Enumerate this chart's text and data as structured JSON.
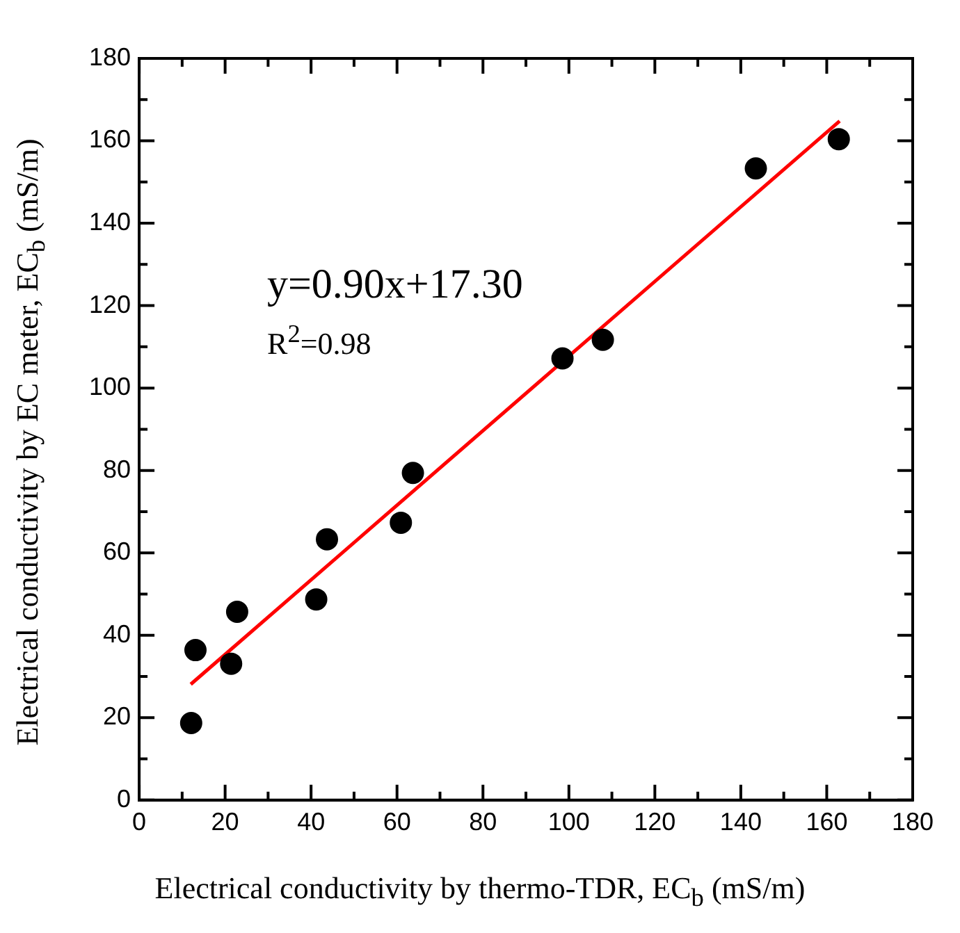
{
  "chart_data": {
    "type": "scatter",
    "xlabel": "Electrical conductivity by thermo-TDR, EC$_{b}$ (mS/m)",
    "ylabel": "Electrical conductivity by EC meter, EC$_{b}$ (mS/m)",
    "annotations": [
      "y=0.90x+17.30",
      "R$^{2}$=0.98"
    ],
    "series": [
      {
        "color": "#000000",
        "marker": "circle",
        "x": [
          12.1,
          13.1,
          21.4,
          22.8,
          41.2,
          43.7,
          60.9,
          63.7,
          98.5,
          107.9,
          143.5,
          162.8
        ],
        "values": [
          18.7,
          36.4,
          33.1,
          45.7,
          48.7,
          63.3,
          67.3,
          79.4,
          107.2,
          111.7,
          153.3,
          160.4
        ]
      },
      {
        "type": "line",
        "color": "#ff0000",
        "marker": "none",
        "line_style": "solid",
        "x": [
          12,
          163
        ],
        "values": [
          28.1,
          164.8
        ]
      }
    ],
    "xlim": [
      0,
      180
    ],
    "ylim": [
      0,
      180
    ],
    "xticks": [
      0,
      {
        "value": 10,
        "label": null
      },
      20,
      {
        "value": 30,
        "label": null
      },
      40,
      {
        "value": 50,
        "label": null
      },
      60,
      {
        "value": 70,
        "label": null
      },
      80,
      {
        "value": 90,
        "label": null
      },
      100,
      {
        "value": 110,
        "label": null
      },
      120,
      {
        "value": 130,
        "label": null
      },
      140,
      {
        "value": 150,
        "label": null
      },
      160,
      {
        "value": 170,
        "label": null
      },
      180
    ],
    "yticks": [
      0,
      {
        "value": 10,
        "label": null
      },
      20,
      {
        "value": 30,
        "label": null
      },
      40,
      {
        "value": 50,
        "label": null
      },
      60,
      {
        "value": 70,
        "label": null
      },
      80,
      {
        "value": 90,
        "label": null
      },
      100,
      {
        "value": 110,
        "label": null
      },
      120,
      {
        "value": 130,
        "label": null
      },
      140,
      {
        "value": 150,
        "label": null
      },
      160,
      {
        "value": 170,
        "label": null
      },
      180
    ],
    "grid": false,
    "legend": false
  }
}
